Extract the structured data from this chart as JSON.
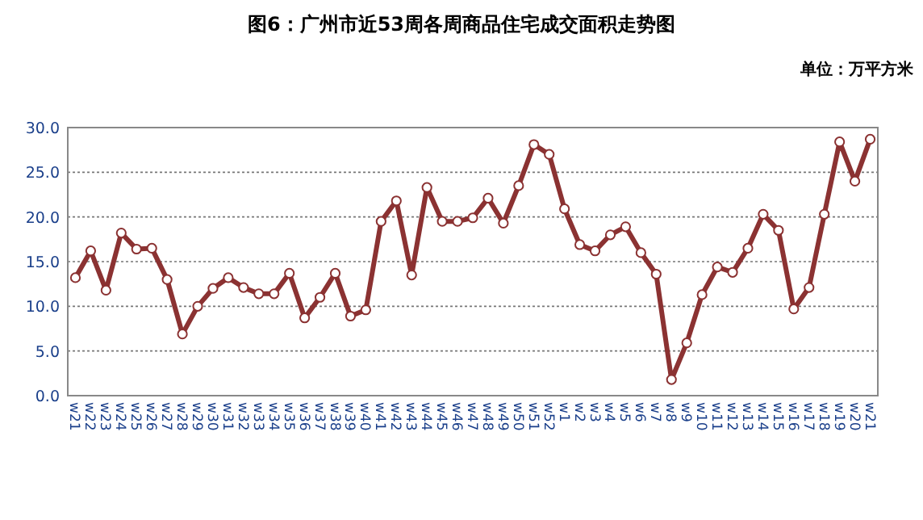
{
  "chart_data": {
    "type": "line",
    "title": "图6：广州市近53周各周商品住宅成交面积走势图",
    "ylabel": "单位：万平方米",
    "categories": [
      "w21",
      "w22",
      "w23",
      "w24",
      "w25",
      "w26",
      "w27",
      "w28",
      "w29",
      "w30",
      "w31",
      "w32",
      "w33",
      "w34",
      "w35",
      "w36",
      "w37",
      "w38",
      "w39",
      "w40",
      "w41",
      "w42",
      "w43",
      "w44",
      "w45",
      "w46",
      "w47",
      "w48",
      "w49",
      "w50",
      "w51",
      "w52",
      "w1",
      "w2",
      "w3",
      "w4",
      "w5",
      "w6",
      "w7",
      "w8",
      "w9",
      "w10",
      "w11",
      "w12",
      "w13",
      "w14",
      "w15",
      "w16",
      "w17",
      "w18",
      "w19",
      "w20",
      "w21"
    ],
    "values": [
      13.2,
      16.2,
      11.8,
      18.2,
      16.4,
      16.5,
      13.0,
      6.9,
      10.0,
      12.0,
      13.2,
      12.1,
      11.4,
      11.4,
      13.7,
      8.7,
      11.0,
      13.7,
      8.9,
      9.6,
      19.5,
      21.8,
      13.5,
      23.3,
      19.5,
      19.5,
      19.9,
      22.1,
      19.3,
      23.5,
      28.1,
      27.0,
      20.9,
      16.9,
      16.2,
      18.0,
      18.9,
      16.0,
      13.6,
      1.8,
      5.9,
      11.3,
      14.4,
      13.8,
      16.5,
      20.3,
      18.5,
      9.7,
      12.1,
      20.3,
      28.4,
      24.0,
      28.7
    ],
    "color": "#8b3232",
    "marker": "circle",
    "grid": "y",
    "ylim": [
      0,
      30
    ],
    "yticks": [
      {
        "value": 0,
        "label": "0.0"
      },
      {
        "value": 5,
        "label": "5.0"
      },
      {
        "value": 10,
        "label": "10.0"
      },
      {
        "value": 15,
        "label": "15.0"
      },
      {
        "value": 20,
        "label": "20.0"
      },
      {
        "value": 25,
        "label": "25.0"
      },
      {
        "value": 30,
        "label": "30.0"
      }
    ]
  }
}
